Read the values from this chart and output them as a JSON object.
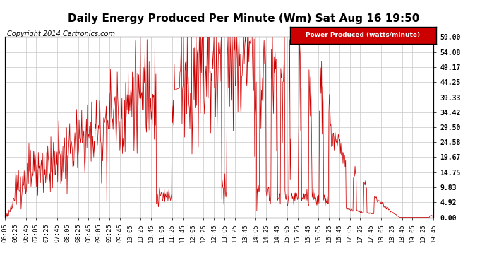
{
  "title": "Daily Energy Produced Per Minute (Wm) Sat Aug 16 19:50",
  "copyright": "Copyright 2014 Cartronics.com",
  "legend_label": "Power Produced (watts/minute)",
  "legend_bg": "#cc0000",
  "legend_text_color": "#ffffff",
  "line_color": "#cc0000",
  "background_color": "#ffffff",
  "grid_color": "#c8c8c8",
  "yticks": [
    0.0,
    4.92,
    9.83,
    14.75,
    19.67,
    24.58,
    29.5,
    34.42,
    39.33,
    44.25,
    49.17,
    54.08,
    59.0
  ],
  "ytick_labels": [
    "0.00",
    "4.92",
    "9.83",
    "14.75",
    "19.67",
    "24.58",
    "29.50",
    "34.42",
    "39.33",
    "44.25",
    "49.17",
    "54.08",
    "59.00"
  ],
  "ymax": 59.0,
  "ymin": 0.0,
  "xtick_labels": [
    "06:05",
    "06:25",
    "06:45",
    "07:05",
    "07:25",
    "07:45",
    "08:05",
    "08:25",
    "08:45",
    "09:05",
    "09:25",
    "09:45",
    "10:05",
    "10:25",
    "10:45",
    "11:05",
    "11:25",
    "11:45",
    "12:05",
    "12:25",
    "12:45",
    "13:05",
    "13:25",
    "13:45",
    "14:05",
    "14:25",
    "14:45",
    "15:05",
    "15:25",
    "15:45",
    "16:05",
    "16:25",
    "16:45",
    "17:05",
    "17:25",
    "17:45",
    "18:05",
    "18:25",
    "18:45",
    "19:05",
    "19:25",
    "19:45"
  ],
  "title_fontsize": 11,
  "copyright_fontsize": 7,
  "tick_fontsize": 6.5
}
